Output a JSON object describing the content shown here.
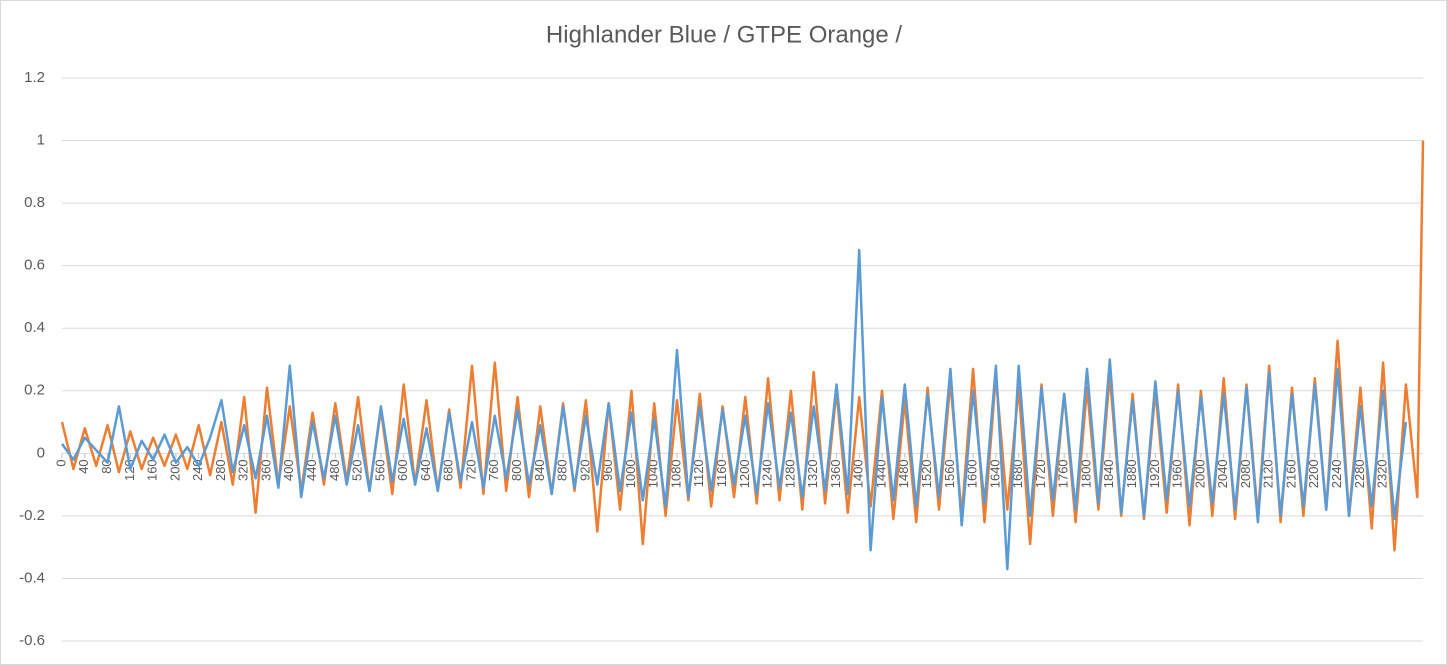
{
  "chart_data": {
    "type": "line",
    "title": "Highlander Blue / GTPE Orange /",
    "x": [
      0,
      20,
      40,
      60,
      80,
      100,
      120,
      140,
      160,
      180,
      200,
      220,
      240,
      260,
      280,
      300,
      320,
      340,
      360,
      380,
      400,
      420,
      440,
      460,
      480,
      500,
      520,
      540,
      560,
      580,
      600,
      620,
      640,
      660,
      680,
      700,
      720,
      740,
      760,
      780,
      800,
      820,
      840,
      860,
      880,
      900,
      920,
      940,
      960,
      980,
      1000,
      1020,
      1040,
      1060,
      1080,
      1100,
      1120,
      1140,
      1160,
      1180,
      1200,
      1220,
      1240,
      1260,
      1280,
      1300,
      1320,
      1340,
      1360,
      1380,
      1400,
      1420,
      1440,
      1460,
      1480,
      1500,
      1520,
      1540,
      1560,
      1580,
      1600,
      1620,
      1640,
      1660,
      1680,
      1700,
      1720,
      1740,
      1760,
      1780,
      1800,
      1820,
      1840,
      1860,
      1880,
      1900,
      1920,
      1940,
      1960,
      1980,
      2000,
      2020,
      2040,
      2060,
      2080,
      2100,
      2120,
      2140,
      2160,
      2180,
      2200,
      2220,
      2240,
      2260,
      2280,
      2300,
      2320,
      2340,
      2360,
      2380,
      2390
    ],
    "series": [
      {
        "color": "#ed7d31",
        "values": [
          0.1,
          -0.05,
          0.08,
          -0.04,
          0.09,
          -0.06,
          0.07,
          -0.05,
          0.05,
          -0.04,
          0.06,
          -0.05,
          0.09,
          -0.07,
          0.1,
          -0.1,
          0.18,
          -0.19,
          0.21,
          -0.1,
          0.15,
          -0.12,
          0.13,
          -0.1,
          0.16,
          -0.09,
          0.18,
          -0.12,
          0.14,
          -0.13,
          0.22,
          -0.1,
          0.17,
          -0.12,
          0.14,
          -0.11,
          0.28,
          -0.13,
          0.29,
          -0.12,
          0.18,
          -0.14,
          0.15,
          -0.13,
          0.16,
          -0.12,
          0.17,
          -0.25,
          0.16,
          -0.18,
          0.2,
          -0.29,
          0.16,
          -0.2,
          0.17,
          -0.15,
          0.19,
          -0.17,
          0.15,
          -0.14,
          0.18,
          -0.16,
          0.24,
          -0.15,
          0.2,
          -0.18,
          0.26,
          -0.16,
          0.2,
          -0.19,
          0.18,
          -0.17,
          0.2,
          -0.21,
          0.17,
          -0.22,
          0.21,
          -0.18,
          0.23,
          -0.2,
          0.27,
          -0.22,
          0.25,
          -0.18,
          0.21,
          -0.29,
          0.22,
          -0.2,
          0.19,
          -0.22,
          0.21,
          -0.18,
          0.25,
          -0.2,
          0.19,
          -0.21,
          0.2,
          -0.19,
          0.22,
          -0.23,
          0.2,
          -0.2,
          0.24,
          -0.21,
          0.22,
          -0.2,
          0.28,
          -0.22,
          0.21,
          -0.2,
          0.24,
          -0.18,
          0.36,
          -0.2,
          0.21,
          -0.24,
          0.29,
          -0.31,
          0.22,
          -0.14,
          1
        ]
      },
      {
        "color": "#5b9bd5",
        "values": [
          0.03,
          -0.02,
          0.05,
          0.01,
          -0.03,
          0.15,
          -0.05,
          0.04,
          -0.02,
          0.06,
          -0.03,
          0.02,
          -0.04,
          0.05,
          0.17,
          -0.06,
          0.09,
          -0.08,
          0.12,
          -0.11,
          0.28,
          -0.14,
          0.1,
          -0.08,
          0.12,
          -0.1,
          0.09,
          -0.12,
          0.15,
          -0.09,
          0.11,
          -0.1,
          0.08,
          -0.12,
          0.13,
          -0.09,
          0.1,
          -0.11,
          0.12,
          -0.08,
          0.14,
          -0.1,
          0.09,
          -0.13,
          0.15,
          -0.11,
          0.12,
          -0.1,
          0.16,
          -0.12,
          0.13,
          -0.15,
          0.11,
          -0.17,
          0.33,
          -0.14,
          0.15,
          -0.12,
          0.14,
          -0.1,
          0.12,
          -0.13,
          0.16,
          -0.11,
          0.13,
          -0.14,
          0.15,
          -0.12,
          0.22,
          -0.13,
          0.65,
          -0.31,
          0.18,
          -0.15,
          0.22,
          -0.17,
          0.19,
          -0.14,
          0.27,
          -0.23,
          0.2,
          -0.16,
          0.28,
          -0.37,
          0.28,
          -0.2,
          0.21,
          -0.15,
          0.19,
          -0.18,
          0.27,
          -0.16,
          0.3,
          -0.19,
          0.17,
          -0.2,
          0.23,
          -0.15,
          0.2,
          -0.17,
          0.18,
          -0.16,
          0.19,
          -0.18,
          0.21,
          -0.22,
          0.26,
          -0.2,
          0.19,
          -0.17,
          0.22,
          -0.18,
          0.27,
          -0.2,
          0.15,
          -0.17,
          0.2,
          -0.21,
          0.1,
          null,
          null
        ]
      }
    ],
    "xlim": [
      0,
      2390
    ],
    "xticks": [
      0,
      40,
      80,
      120,
      160,
      200,
      240,
      280,
      320,
      360,
      400,
      440,
      480,
      520,
      560,
      600,
      640,
      680,
      720,
      760,
      800,
      840,
      880,
      920,
      960,
      1000,
      1040,
      1080,
      1120,
      1160,
      1200,
      1240,
      1280,
      1320,
      1360,
      1400,
      1440,
      1480,
      1520,
      1560,
      1600,
      1640,
      1680,
      1720,
      1760,
      1800,
      1840,
      1880,
      1920,
      1960,
      2000,
      2040,
      2080,
      2120,
      2160,
      2200,
      2240,
      2280,
      2320
    ],
    "ylim": [
      -0.6,
      1.2
    ],
    "yticks": [
      -0.6,
      -0.4,
      -0.2,
      0,
      0.2,
      0.4,
      0.6,
      0.8,
      1,
      1.2
    ],
    "grid": true
  }
}
